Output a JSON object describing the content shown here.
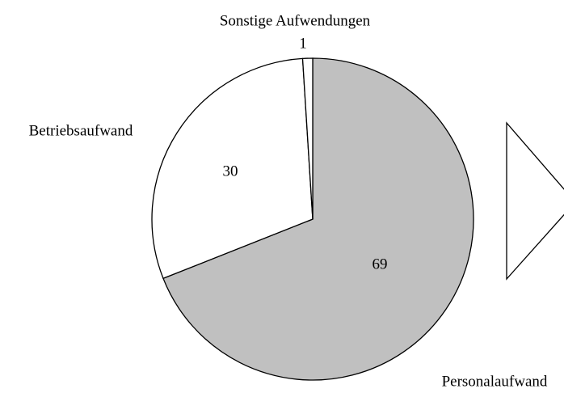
{
  "chart_data": {
    "type": "pie",
    "categories": [
      "Personalaufwand",
      "Betriebsaufwand",
      "Sonstige Aufwendungen"
    ],
    "values": [
      69,
      30,
      1
    ],
    "colors": [
      "#c0c0c0",
      "#ffffff",
      "#ffffff"
    ]
  }
}
